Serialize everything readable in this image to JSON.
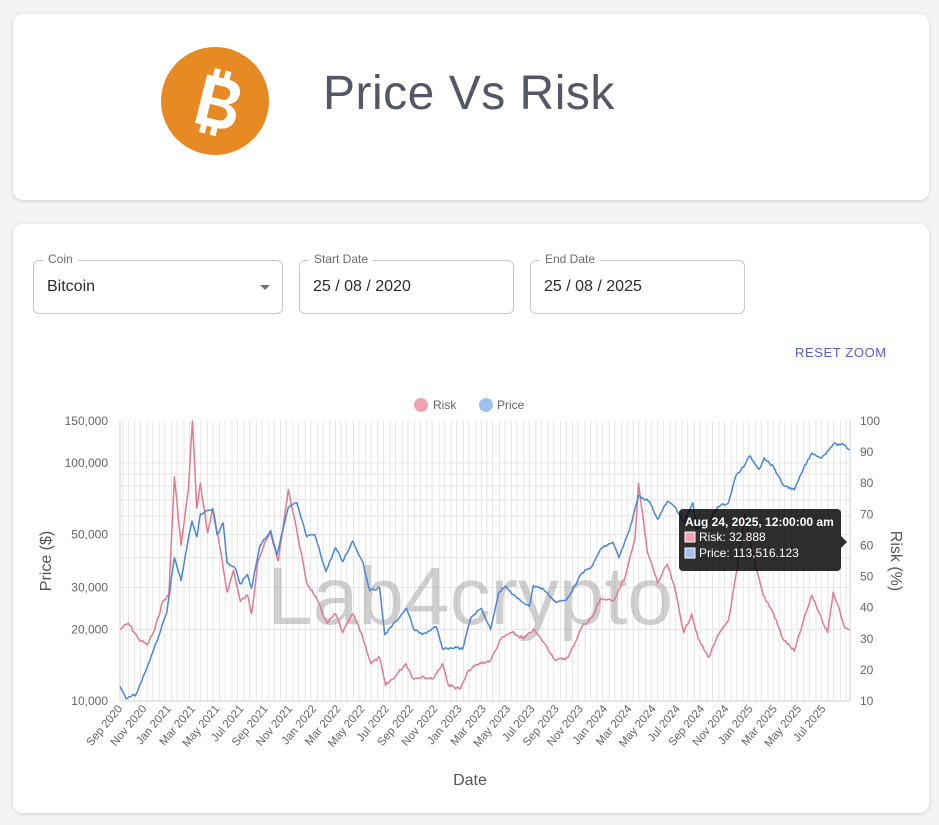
{
  "header": {
    "title": "Price Vs Risk",
    "logo_icon": "bitcoin-logo-icon",
    "logo_color": "#e88a24"
  },
  "filters": {
    "coin": {
      "label": "Coin",
      "value": "Bitcoin"
    },
    "start_date": {
      "label": "Start Date",
      "value": "25 / 08 / 2020"
    },
    "end_date": {
      "label": "End Date",
      "value": "25 / 08 / 2025"
    }
  },
  "reset_zoom_label": "RESET ZOOM",
  "watermark": "Lab4crypto",
  "tooltip": {
    "title": "Aug 24, 2025, 12:00:00 am",
    "lines": [
      "Risk: 32.888",
      "Price: 113,516.123"
    ]
  },
  "chart_data": {
    "type": "line",
    "xlabel": "Date",
    "y_left_label": "Price ($)",
    "y_right_label": "Risk (%)",
    "y_left_scale": "log",
    "y_left_range": [
      10000,
      150000
    ],
    "y_right_range": [
      10,
      100
    ],
    "y_left_ticks": [
      10000,
      20000,
      30000,
      50000,
      100000,
      150000
    ],
    "y_left_tick_labels": [
      "10,000",
      "20,000",
      "30,000",
      "50,000",
      "100,000",
      "150,000"
    ],
    "y_right_ticks": [
      10,
      20,
      30,
      40,
      50,
      60,
      70,
      80,
      90,
      100
    ],
    "x_range": [
      "2020-08-25",
      "2025-08-25"
    ],
    "x_tick_labels": [
      "Sep 2020",
      "Nov 2020",
      "Jan 2021",
      "Mar 2021",
      "May 2021",
      "Jul 2021",
      "Sep 2021",
      "Nov 2021",
      "Jan 2022",
      "Mar 2022",
      "May 2022",
      "Jul 2022",
      "Sep 2022",
      "Nov 2022",
      "Jan 2023",
      "Mar 2023",
      "May 2023",
      "Jul 2023",
      "Sep 2023",
      "Nov 2023",
      "Jan 2024",
      "Mar 2024",
      "May 2024",
      "Jul 2024",
      "Sep 2024",
      "Nov 2024",
      "Jan 2025",
      "Mar 2025",
      "May 2025",
      "Jul 2025"
    ],
    "grid": true,
    "legend_position": "top",
    "series": [
      {
        "name": "Risk",
        "axis": "right",
        "color": "#e07b8f",
        "points": [
          [
            "2020-08-25",
            33
          ],
          [
            "2020-09-15",
            35
          ],
          [
            "2020-10-10",
            30
          ],
          [
            "2020-11-01",
            28
          ],
          [
            "2020-11-20",
            33
          ],
          [
            "2020-12-10",
            42
          ],
          [
            "2020-12-25",
            44
          ],
          [
            "2021-01-08",
            82
          ],
          [
            "2021-01-25",
            60
          ],
          [
            "2021-02-12",
            78
          ],
          [
            "2021-02-22",
            100
          ],
          [
            "2021-03-05",
            72
          ],
          [
            "2021-03-14",
            80
          ],
          [
            "2021-04-01",
            64
          ],
          [
            "2021-04-14",
            72
          ],
          [
            "2021-05-01",
            60
          ],
          [
            "2021-05-20",
            45
          ],
          [
            "2021-06-05",
            52
          ],
          [
            "2021-06-22",
            42
          ],
          [
            "2021-07-10",
            44
          ],
          [
            "2021-07-20",
            38
          ],
          [
            "2021-08-05",
            55
          ],
          [
            "2021-08-20",
            60
          ],
          [
            "2021-09-05",
            64
          ],
          [
            "2021-09-25",
            55
          ],
          [
            "2021-10-20",
            78
          ],
          [
            "2021-11-10",
            65
          ],
          [
            "2021-12-05",
            48
          ],
          [
            "2021-12-25",
            44
          ],
          [
            "2022-01-25",
            35
          ],
          [
            "2022-02-15",
            38
          ],
          [
            "2022-03-05",
            32
          ],
          [
            "2022-03-30",
            38
          ],
          [
            "2022-04-20",
            32
          ],
          [
            "2022-05-15",
            22
          ],
          [
            "2022-06-05",
            24
          ],
          [
            "2022-06-20",
            15
          ],
          [
            "2022-07-15",
            18
          ],
          [
            "2022-08-10",
            22
          ],
          [
            "2022-08-30",
            17
          ],
          [
            "2022-09-20",
            18
          ],
          [
            "2022-10-15",
            17
          ],
          [
            "2022-11-10",
            22
          ],
          [
            "2022-11-25",
            15
          ],
          [
            "2022-12-25",
            14
          ],
          [
            "2023-01-15",
            20
          ],
          [
            "2023-02-10",
            22
          ],
          [
            "2023-03-10",
            23
          ],
          [
            "2023-04-05",
            30
          ],
          [
            "2023-05-01",
            32
          ],
          [
            "2023-06-01",
            30
          ],
          [
            "2023-06-25",
            33
          ],
          [
            "2023-07-20",
            29
          ],
          [
            "2023-08-20",
            23
          ],
          [
            "2023-09-20",
            24
          ],
          [
            "2023-10-25",
            34
          ],
          [
            "2023-11-20",
            37
          ],
          [
            "2023-12-10",
            43
          ],
          [
            "2024-01-10",
            42
          ],
          [
            "2024-02-10",
            50
          ],
          [
            "2024-03-05",
            62
          ],
          [
            "2024-03-14",
            80
          ],
          [
            "2024-04-05",
            58
          ],
          [
            "2024-05-01",
            48
          ],
          [
            "2024-05-25",
            54
          ],
          [
            "2024-06-15",
            45
          ],
          [
            "2024-07-05",
            32
          ],
          [
            "2024-07-25",
            38
          ],
          [
            "2024-08-10",
            30
          ],
          [
            "2024-09-05",
            24
          ],
          [
            "2024-09-25",
            30
          ],
          [
            "2024-10-25",
            36
          ],
          [
            "2024-11-15",
            52
          ],
          [
            "2024-12-05",
            70
          ],
          [
            "2024-12-20",
            60
          ],
          [
            "2025-01-20",
            44
          ],
          [
            "2025-02-15",
            38
          ],
          [
            "2025-03-10",
            30
          ],
          [
            "2025-04-08",
            26
          ],
          [
            "2025-05-01",
            36
          ],
          [
            "2025-05-22",
            44
          ],
          [
            "2025-06-10",
            38
          ],
          [
            "2025-06-30",
            32
          ],
          [
            "2025-07-14",
            45
          ],
          [
            "2025-07-28",
            40
          ],
          [
            "2025-08-10",
            34
          ],
          [
            "2025-08-24",
            32.888
          ]
        ]
      },
      {
        "name": "Price",
        "axis": "left",
        "color": "#4a86d4",
        "points": [
          [
            "2020-08-25",
            11500
          ],
          [
            "2020-09-10",
            10200
          ],
          [
            "2020-10-05",
            10700
          ],
          [
            "2020-10-25",
            13000
          ],
          [
            "2020-11-15",
            16000
          ],
          [
            "2020-12-01",
            19000
          ],
          [
            "2020-12-20",
            23500
          ],
          [
            "2021-01-08",
            40000
          ],
          [
            "2021-01-25",
            32000
          ],
          [
            "2021-02-10",
            46000
          ],
          [
            "2021-02-21",
            57000
          ],
          [
            "2021-03-05",
            49000
          ],
          [
            "2021-03-14",
            61000
          ],
          [
            "2021-04-14",
            64000
          ],
          [
            "2021-04-25",
            50000
          ],
          [
            "2021-05-10",
            56000
          ],
          [
            "2021-05-20",
            38000
          ],
          [
            "2021-06-10",
            36000
          ],
          [
            "2021-06-22",
            31000
          ],
          [
            "2021-07-10",
            34000
          ],
          [
            "2021-07-20",
            29800
          ],
          [
            "2021-08-10",
            45000
          ],
          [
            "2021-09-06",
            52000
          ],
          [
            "2021-09-21",
            41000
          ],
          [
            "2021-10-20",
            65000
          ],
          [
            "2021-11-10",
            68000
          ],
          [
            "2021-12-05",
            49000
          ],
          [
            "2021-12-25",
            50000
          ],
          [
            "2022-01-22",
            35000
          ],
          [
            "2022-02-15",
            44000
          ],
          [
            "2022-03-05",
            38500
          ],
          [
            "2022-03-30",
            47000
          ],
          [
            "2022-04-25",
            38000
          ],
          [
            "2022-05-12",
            29000
          ],
          [
            "2022-06-05",
            30000
          ],
          [
            "2022-06-18",
            19000
          ],
          [
            "2022-07-15",
            21500
          ],
          [
            "2022-08-12",
            24500
          ],
          [
            "2022-08-30",
            20000
          ],
          [
            "2022-09-20",
            19000
          ],
          [
            "2022-10-25",
            20500
          ],
          [
            "2022-11-10",
            16500
          ],
          [
            "2022-12-15",
            16800
          ],
          [
            "2022-12-30",
            16500
          ],
          [
            "2023-01-20",
            22500
          ],
          [
            "2023-02-15",
            24500
          ],
          [
            "2023-03-10",
            20000
          ],
          [
            "2023-03-30",
            28500
          ],
          [
            "2023-04-15",
            30300
          ],
          [
            "2023-05-15",
            27000
          ],
          [
            "2023-06-15",
            25000
          ],
          [
            "2023-06-25",
            30500
          ],
          [
            "2023-07-20",
            29500
          ],
          [
            "2023-08-20",
            26000
          ],
          [
            "2023-09-15",
            26500
          ],
          [
            "2023-10-25",
            34500
          ],
          [
            "2023-11-20",
            37000
          ],
          [
            "2023-12-10",
            43500
          ],
          [
            "2024-01-10",
            46500
          ],
          [
            "2024-01-25",
            40000
          ],
          [
            "2024-02-20",
            52000
          ],
          [
            "2024-03-14",
            73000
          ],
          [
            "2024-04-10",
            69000
          ],
          [
            "2024-05-01",
            58000
          ],
          [
            "2024-05-25",
            69000
          ],
          [
            "2024-06-15",
            65000
          ],
          [
            "2024-07-05",
            56000
          ],
          [
            "2024-07-28",
            68000
          ],
          [
            "2024-08-05",
            53000
          ],
          [
            "2024-09-05",
            56000
          ],
          [
            "2024-09-28",
            65500
          ],
          [
            "2024-10-25",
            68000
          ],
          [
            "2024-11-12",
            88000
          ],
          [
            "2024-12-05",
            98000
          ],
          [
            "2024-12-17",
            107000
          ],
          [
            "2025-01-10",
            94000
          ],
          [
            "2025-01-22",
            105000
          ],
          [
            "2025-02-15",
            96000
          ],
          [
            "2025-03-10",
            81000
          ],
          [
            "2025-04-08",
            77000
          ],
          [
            "2025-05-01",
            95000
          ],
          [
            "2025-05-22",
            110000
          ],
          [
            "2025-06-15",
            105000
          ],
          [
            "2025-07-14",
            120000
          ],
          [
            "2025-08-10",
            119000
          ],
          [
            "2025-08-24",
            113516
          ]
        ]
      }
    ]
  }
}
